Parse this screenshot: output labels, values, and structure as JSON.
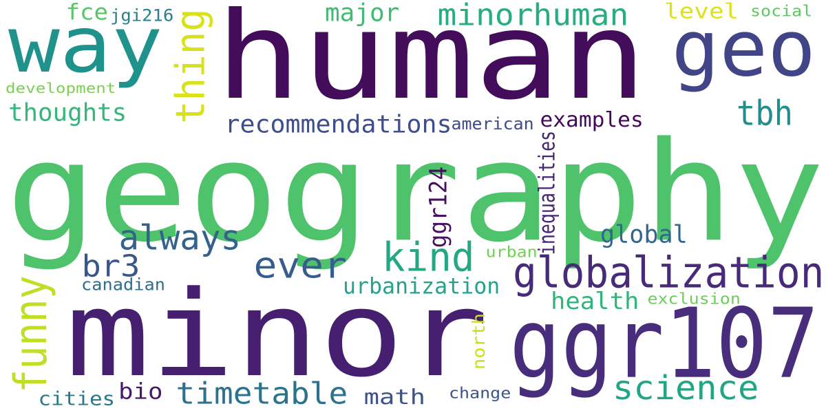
{
  "words": [
    {
      "id": "w01",
      "text": "geography",
      "color": "#4ec36b",
      "orientation": "horizontal"
    },
    {
      "id": "w02",
      "text": "human",
      "color": "#440d5b",
      "orientation": "horizontal"
    },
    {
      "id": "w03",
      "text": "minor",
      "color": "#471f70",
      "orientation": "horizontal"
    },
    {
      "id": "w04",
      "text": "ggr107",
      "color": "#472d7b",
      "orientation": "horizontal"
    },
    {
      "id": "w05",
      "text": "way",
      "color": "#20928c",
      "orientation": "horizontal"
    },
    {
      "id": "w06",
      "text": "geo",
      "color": "#414487",
      "orientation": "horizontal"
    },
    {
      "id": "w07",
      "text": "globalization",
      "color": "#472a7a",
      "orientation": "horizontal"
    },
    {
      "id": "w08",
      "text": "kind",
      "color": "#24a884",
      "orientation": "horizontal"
    },
    {
      "id": "w09",
      "text": "ever",
      "color": "#365d8d",
      "orientation": "horizontal"
    },
    {
      "id": "w10",
      "text": "science",
      "color": "#21a585",
      "orientation": "horizontal"
    },
    {
      "id": "w11",
      "text": "minorhuman",
      "color": "#26ad81",
      "orientation": "horizontal"
    },
    {
      "id": "w12",
      "text": "timetable",
      "color": "#2c728e",
      "orientation": "horizontal"
    },
    {
      "id": "w13",
      "text": "thing",
      "color": "#d8e219",
      "orientation": "vertical"
    },
    {
      "id": "w14",
      "text": "always",
      "color": "#33638d",
      "orientation": "horizontal"
    },
    {
      "id": "w15",
      "text": "funny",
      "color": "#bddf26",
      "orientation": "vertical"
    },
    {
      "id": "w16",
      "text": "tbh",
      "color": "#228d8d",
      "orientation": "horizontal"
    },
    {
      "id": "w17",
      "text": "br3",
      "color": "#39568c",
      "orientation": "horizontal"
    },
    {
      "id": "w18",
      "text": "recommendations",
      "color": "#3d4e8a",
      "orientation": "horizontal"
    },
    {
      "id": "w19",
      "text": "urbanization",
      "color": "#25a18e",
      "orientation": "horizontal"
    },
    {
      "id": "w20",
      "text": "thoughts",
      "color": "#35b779",
      "orientation": "horizontal"
    },
    {
      "id": "w21",
      "text": "health",
      "color": "#2fb47c",
      "orientation": "horizontal"
    },
    {
      "id": "w22",
      "text": "global",
      "color": "#31668e",
      "orientation": "horizontal"
    },
    {
      "id": "w23",
      "text": "major",
      "color": "#3fbc73",
      "orientation": "horizontal"
    },
    {
      "id": "w24",
      "text": "examples",
      "color": "#46085c",
      "orientation": "horizontal"
    },
    {
      "id": "w25",
      "text": "math",
      "color": "#3b528b",
      "orientation": "horizontal"
    },
    {
      "id": "w26",
      "text": "ggr124",
      "color": "#471063",
      "orientation": "vertical"
    },
    {
      "id": "w27",
      "text": "level",
      "color": "#dde318",
      "orientation": "horizontal"
    },
    {
      "id": "w28",
      "text": "fce",
      "color": "#56c667",
      "orientation": "horizontal"
    },
    {
      "id": "w29",
      "text": "bio",
      "color": "#48186a",
      "orientation": "horizontal"
    },
    {
      "id": "w30",
      "text": "cities",
      "color": "#2a788e",
      "orientation": "horizontal"
    },
    {
      "id": "w31",
      "text": "canadian",
      "color": "#2d708e",
      "orientation": "horizontal"
    },
    {
      "id": "w32",
      "text": "inequalities",
      "color": "#482475",
      "orientation": "vertical"
    },
    {
      "id": "w33",
      "text": "american",
      "color": "#3e4a89",
      "orientation": "horizontal"
    },
    {
      "id": "w34",
      "text": "development",
      "color": "#7ad151",
      "orientation": "horizontal"
    },
    {
      "id": "w35",
      "text": "jgi216",
      "color": "#277f8e",
      "orientation": "horizontal"
    },
    {
      "id": "w36",
      "text": "social",
      "color": "#5ec962",
      "orientation": "horizontal"
    },
    {
      "id": "w37",
      "text": "exclusion",
      "color": "#6ccd5a",
      "orientation": "horizontal"
    },
    {
      "id": "w38",
      "text": "urban",
      "color": "#73d056",
      "orientation": "horizontal"
    },
    {
      "id": "w39",
      "text": "north",
      "color": "#c8e020",
      "orientation": "vertical"
    },
    {
      "id": "w40",
      "text": "change",
      "color": "#3a548c",
      "orientation": "horizontal"
    }
  ]
}
